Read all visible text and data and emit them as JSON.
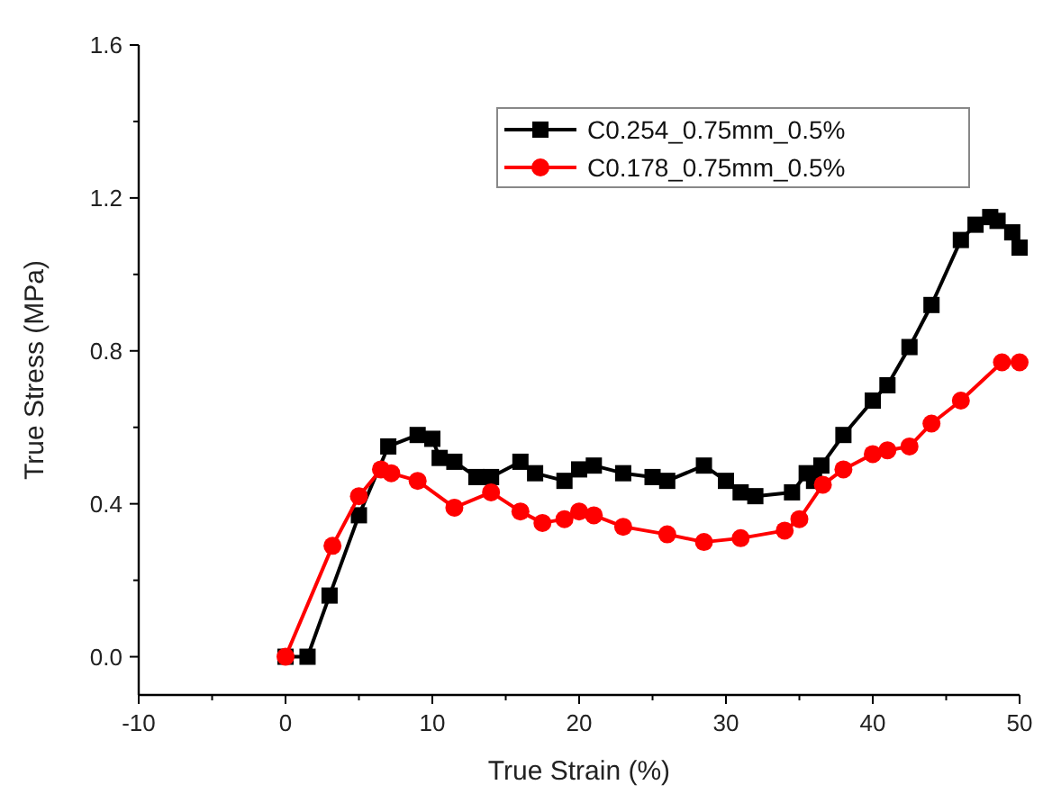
{
  "chart_data": {
    "type": "line",
    "xlabel": "True Strain (%)",
    "ylabel": "True Stress (MPa)",
    "xlim": [
      -10,
      50
    ],
    "xticks": [
      -10,
      0,
      10,
      20,
      30,
      40,
      50
    ],
    "ylim": [
      -0.1,
      1.6
    ],
    "yticks": [
      {
        "value": 0,
        "label": "0.0"
      },
      0.4,
      0.8,
      1.2,
      1.6
    ],
    "grid": false,
    "legend": "top right",
    "line_style": "solid",
    "series": [
      {
        "name": "C0.254_0.75mm_0.5%",
        "color": "#000000",
        "marker": "square",
        "x": [
          0,
          1.5,
          3,
          5,
          7,
          9,
          10,
          10.5,
          11.5,
          13,
          14,
          16,
          17,
          19,
          20,
          21,
          23,
          25,
          26,
          28.5,
          30,
          31,
          32,
          34.5,
          35.5,
          36,
          36.5,
          38,
          40,
          41,
          42.5,
          44,
          46,
          47,
          48,
          48.5,
          49.5,
          50
        ],
        "values": [
          0,
          0,
          0.16,
          0.37,
          0.55,
          0.58,
          0.57,
          0.52,
          0.51,
          0.47,
          0.47,
          0.51,
          0.48,
          0.46,
          0.49,
          0.5,
          0.48,
          0.47,
          0.46,
          0.5,
          0.46,
          0.43,
          0.42,
          0.43,
          0.48,
          0.46,
          0.5,
          0.58,
          0.67,
          0.71,
          0.81,
          0.92,
          1.09,
          1.13,
          1.15,
          1.14,
          1.11,
          1.07
        ]
      },
      {
        "name": "C0.178_0.75mm_0.5%",
        "color": "#ff0000",
        "marker": "circle",
        "x": [
          0,
          3.2,
          5,
          6.5,
          7.2,
          9,
          11.5,
          14,
          16,
          17.5,
          19,
          20,
          21,
          23,
          26,
          28.5,
          31,
          34,
          35,
          36.6,
          38,
          40,
          41,
          42.5,
          44,
          46,
          48.8,
          50
        ],
        "values": [
          0,
          0.29,
          0.42,
          0.49,
          0.48,
          0.46,
          0.39,
          0.43,
          0.38,
          0.35,
          0.36,
          0.38,
          0.37,
          0.34,
          0.32,
          0.3,
          0.31,
          0.33,
          0.36,
          0.45,
          0.49,
          0.53,
          0.54,
          0.55,
          0.61,
          0.67,
          0.77,
          0.77
        ]
      }
    ]
  }
}
